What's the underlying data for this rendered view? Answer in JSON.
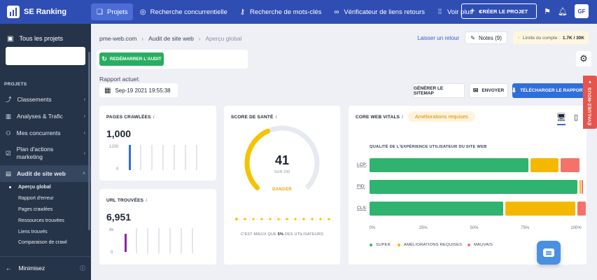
{
  "brand": {
    "name": "SE Ranking"
  },
  "nav": {
    "items": [
      {
        "label": "Projets",
        "icon": "layers-icon"
      },
      {
        "label": "Recherche concurrentielle",
        "icon": "target-icon"
      },
      {
        "label": "Recherche de mots-clés",
        "icon": "key-icon"
      },
      {
        "label": "Vérificateur de liens retours",
        "icon": "link-icon"
      },
      {
        "label": "Voir plus",
        "icon": "grid-icon"
      }
    ],
    "create_label": "CRÉER LE PROJET",
    "avatar": "GF"
  },
  "sidebar": {
    "all_projects": "Tous les projets",
    "section": "PROJETS",
    "items": [
      {
        "label": "Classements"
      },
      {
        "label": "Analyses & Trafic"
      },
      {
        "label": "Mes concurrents"
      },
      {
        "label": "Plan d'actions marketing"
      },
      {
        "label": "Audit de site web"
      }
    ],
    "subitems": [
      {
        "label": "Aperçu global"
      },
      {
        "label": "Rapport d'erreur"
      },
      {
        "label": "Pages crawlées"
      },
      {
        "label": "Ressources trouvées"
      },
      {
        "label": "Liens trouvés"
      },
      {
        "label": "Comparaison de crawl"
      }
    ],
    "minimize": "Minimisez"
  },
  "breadcrumb": {
    "site": "pme-web.com",
    "section": "Audit de site web",
    "current": "Aperçu global"
  },
  "header_actions": {
    "feedback": "Laisser un retour",
    "notes": "Notes (9)",
    "limit_label": "Limite du compte :",
    "limit_value": "1.7K / 30K"
  },
  "restart_label": "REDÉMARRER L'AUDIT",
  "report": {
    "label": "Rapport actuel:",
    "date": "Sep-19 2021 19:55:38"
  },
  "actions": {
    "sitemap": "GÉNÉRER LE SITEMAP",
    "send": "ENVOYER",
    "download": "TÉLÉCHARGER LE RAPPORT"
  },
  "pages_crawled": {
    "title": "PAGES CRAWLÉES",
    "value": "1,000",
    "axis_top": "1200",
    "axis_bottom": "0",
    "accent": "#2f6fdc"
  },
  "urls_found": {
    "title": "URL TROUVÉES",
    "value": "6,951",
    "axis_top": "8k",
    "axis_bottom": "0",
    "accent": "#8e24aa"
  },
  "health": {
    "title": "SCORE DE SANTÉ",
    "score": "41",
    "max": "SUR 100",
    "status": "DANGER",
    "score_fraction": 0.41,
    "footer_pre": "C'EST MIEUX QUE",
    "footer_pct": "5%",
    "footer_post": "DES UTILISATEURS"
  },
  "cwv": {
    "title": "CORE WEB VITALS",
    "badge": "Améliorations requises",
    "subtitle": "QUALITÉ DE L'EXPÉRIENCE UTILISATEUR DU SITE WEB",
    "desktop_icon": "desktop-icon",
    "mobile_icon": "mobile-icon"
  },
  "chart_data": {
    "type": "bar",
    "stacked": true,
    "orientation": "horizontal",
    "categories": [
      "LCP:",
      "FID:",
      "CLS:"
    ],
    "series": [
      {
        "name": "SUPER",
        "color": "#2fb36f",
        "values": [
          76,
          99,
          64
        ]
      },
      {
        "name": "AMÉLIORATIONS REQUISES",
        "color": "#f5b800",
        "values": [
          14,
          1,
          34
        ]
      },
      {
        "name": "MAUVAIS",
        "color": "#f4726a",
        "values": [
          10,
          1,
          5
        ]
      }
    ],
    "xlim": [
      0,
      100
    ],
    "xticks": [
      "0%",
      "25%",
      "50%",
      "75%",
      "100%"
    ],
    "legend": "bottom"
  }
}
